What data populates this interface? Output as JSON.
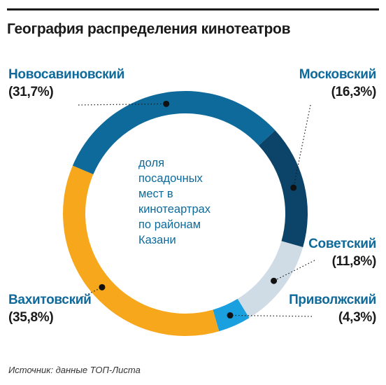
{
  "title": "География распределения кинотеатров",
  "source": "Источник: данные ТОП-Листа",
  "center_text": [
    "доля",
    "посадочных",
    "мест в",
    "кинотеартрах",
    "по районам",
    "Казани"
  ],
  "colors": {
    "Новосавиновский": "#0e6a9a",
    "Московский": "#0b4468",
    "Советский": "#cfdbe5",
    "Приволжский": "#1aa0df",
    "Вахитовский": "#f6a71b"
  },
  "chart_data": {
    "type": "pie",
    "title": "География распределения кинотеатров",
    "categories": [
      "Новосавиновский",
      "Московский",
      "Советский",
      "Приволжский",
      "Вахитовский"
    ],
    "values": [
      31.7,
      16.3,
      11.8,
      4.3,
      35.8
    ],
    "value_labels": [
      "(31,7%)",
      "(16,3%)",
      "(11,8%)",
      "(4,3%)",
      "(35,8%)"
    ]
  }
}
